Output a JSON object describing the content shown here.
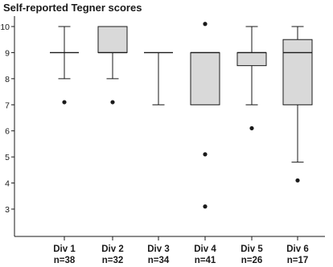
{
  "chart_data": {
    "type": "box",
    "title": "Self-reported Tegner scores",
    "ylim": [
      2,
      10
    ],
    "yticks": [
      3,
      4,
      5,
      6,
      7,
      8,
      9,
      10
    ],
    "grid": false,
    "colors": {
      "box_fill": "#d9d9d9",
      "stroke": "#1a1a1a"
    },
    "categories": [
      {
        "label": "Div 1",
        "n": "n=38",
        "box_low": 9,
        "median": 9,
        "box_high": 9,
        "whisker_low": 8,
        "whisker_high": 10,
        "outliers": [
          7.1
        ]
      },
      {
        "label": "Div 2",
        "n": "n=32",
        "box_low": 9,
        "median": 9,
        "box_high": 10,
        "whisker_low": 8,
        "whisker_high": 10,
        "outliers": [
          7.1
        ]
      },
      {
        "label": "Div 3",
        "n": "n=34",
        "box_low": 9,
        "median": 9,
        "box_high": 9,
        "whisker_low": 7,
        "whisker_high": 9,
        "outliers": []
      },
      {
        "label": "Div 4",
        "n": "n=41",
        "box_low": 7,
        "median": 9,
        "box_high": 9,
        "whisker_low": 7,
        "whisker_high": 9,
        "outliers": [
          10.1,
          5.1,
          3.1
        ]
      },
      {
        "label": "Div 5",
        "n": "n=26",
        "box_low": 8.5,
        "median": 9,
        "box_high": 9,
        "whisker_low": 7,
        "whisker_high": 10,
        "outliers": [
          6.1
        ]
      },
      {
        "label": "Div 6",
        "n": "n=17",
        "box_low": 7,
        "median": 9,
        "box_high": 9.5,
        "whisker_low": 4.8,
        "whisker_high": 10,
        "outliers": [
          4.1
        ]
      }
    ]
  }
}
